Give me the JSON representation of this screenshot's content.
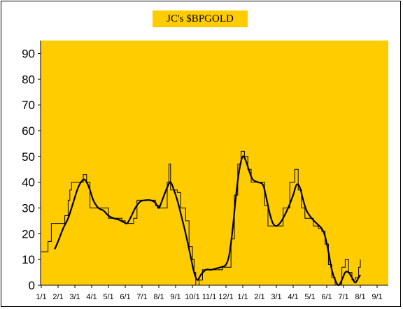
{
  "chart_data": {
    "type": "line",
    "title": "JC's $BPGOLD",
    "xlabel": "",
    "ylabel": "",
    "ylim": [
      0,
      95
    ],
    "yticks": [
      0,
      10,
      20,
      30,
      40,
      50,
      60,
      70,
      80,
      90
    ],
    "categories": [
      "1/1",
      "2/1",
      "3/1",
      "4/1",
      "5/1",
      "6/1",
      "7/1",
      "8/1",
      "9/1",
      "10/1",
      "11/1",
      "12/1",
      "1/1",
      "2/1",
      "3/1",
      "4/1",
      "5/1",
      "6/1",
      "7/1",
      "8/1",
      "9/1"
    ],
    "grid": false,
    "legend": "none",
    "colors": {
      "plot_bg": "#ffcc00",
      "title_bg": "#ffcc00",
      "line": "#000000"
    },
    "series": [
      {
        "style": "step-thin",
        "points": [
          [
            0.0,
            13
          ],
          [
            0.3,
            13
          ],
          [
            0.4,
            17
          ],
          [
            0.6,
            24
          ],
          [
            0.9,
            24
          ],
          [
            1.1,
            24
          ],
          [
            1.4,
            27
          ],
          [
            1.6,
            33
          ],
          [
            1.7,
            37
          ],
          [
            1.8,
            40
          ],
          [
            2.1,
            40
          ],
          [
            2.4,
            40
          ],
          [
            2.5,
            43
          ],
          [
            2.7,
            40
          ],
          [
            2.9,
            30
          ],
          [
            3.3,
            30
          ],
          [
            3.6,
            30
          ],
          [
            3.8,
            30
          ],
          [
            4.0,
            26
          ],
          [
            4.4,
            26
          ],
          [
            4.6,
            26
          ],
          [
            4.8,
            25
          ],
          [
            5.0,
            24
          ],
          [
            5.3,
            24
          ],
          [
            5.5,
            26
          ],
          [
            5.7,
            33
          ],
          [
            6.0,
            33
          ],
          [
            6.3,
            33
          ],
          [
            6.6,
            33
          ],
          [
            6.8,
            31
          ],
          [
            7.0,
            30
          ],
          [
            7.3,
            30
          ],
          [
            7.5,
            40
          ],
          [
            7.6,
            47
          ],
          [
            7.7,
            37
          ],
          [
            7.9,
            37
          ],
          [
            8.1,
            36
          ],
          [
            8.3,
            30
          ],
          [
            8.6,
            25
          ],
          [
            8.8,
            15
          ],
          [
            9.0,
            10
          ],
          [
            9.1,
            5
          ],
          [
            9.2,
            0
          ],
          [
            9.4,
            2
          ],
          [
            9.6,
            6
          ],
          [
            9.8,
            6
          ],
          [
            10.1,
            6
          ],
          [
            10.4,
            6
          ],
          [
            10.6,
            6
          ],
          [
            10.8,
            7
          ],
          [
            11.1,
            7
          ],
          [
            11.3,
            18
          ],
          [
            11.5,
            35
          ],
          [
            11.7,
            47
          ],
          [
            11.9,
            52
          ],
          [
            12.1,
            50
          ],
          [
            12.3,
            45
          ],
          [
            12.5,
            40
          ],
          [
            12.8,
            40
          ],
          [
            13.1,
            40
          ],
          [
            13.3,
            31
          ],
          [
            13.5,
            23
          ],
          [
            13.8,
            23
          ],
          [
            14.1,
            23
          ],
          [
            14.4,
            30
          ],
          [
            14.6,
            30
          ],
          [
            14.8,
            40
          ],
          [
            15.0,
            40
          ],
          [
            15.1,
            45
          ],
          [
            15.3,
            37
          ],
          [
            15.5,
            30
          ],
          [
            15.7,
            26
          ],
          [
            15.9,
            26
          ],
          [
            16.2,
            23
          ],
          [
            16.5,
            22
          ],
          [
            16.7,
            21
          ],
          [
            16.9,
            16
          ],
          [
            17.1,
            8
          ],
          [
            17.3,
            3
          ],
          [
            17.5,
            0
          ],
          [
            17.7,
            0
          ],
          [
            17.9,
            7
          ],
          [
            18.1,
            10
          ],
          [
            18.3,
            5
          ],
          [
            18.5,
            2
          ],
          [
            18.7,
            3
          ],
          [
            18.9,
            7
          ],
          [
            19.0,
            10
          ]
        ]
      },
      {
        "style": "smooth-bold",
        "points": [
          [
            0.8,
            14
          ],
          [
            1.0,
            17
          ],
          [
            1.3,
            22
          ],
          [
            1.6,
            26
          ],
          [
            1.9,
            32
          ],
          [
            2.2,
            38
          ],
          [
            2.5,
            41
          ],
          [
            2.7,
            40
          ],
          [
            2.9,
            37
          ],
          [
            3.1,
            33
          ],
          [
            3.4,
            30
          ],
          [
            3.7,
            29
          ],
          [
            4.0,
            27
          ],
          [
            4.3,
            26
          ],
          [
            4.6,
            25.5
          ],
          [
            4.9,
            24.5
          ],
          [
            5.1,
            24
          ],
          [
            5.3,
            26
          ],
          [
            5.6,
            30
          ],
          [
            5.9,
            32.5
          ],
          [
            6.2,
            33
          ],
          [
            6.5,
            33
          ],
          [
            6.8,
            32
          ],
          [
            7.0,
            30
          ],
          [
            7.2,
            33
          ],
          [
            7.5,
            38
          ],
          [
            7.7,
            40
          ],
          [
            7.9,
            37
          ],
          [
            8.1,
            33
          ],
          [
            8.3,
            28
          ],
          [
            8.6,
            20
          ],
          [
            8.9,
            11
          ],
          [
            9.1,
            5
          ],
          [
            9.3,
            2
          ],
          [
            9.5,
            4
          ],
          [
            9.8,
            6
          ],
          [
            10.1,
            6
          ],
          [
            10.4,
            6.5
          ],
          [
            10.7,
            7
          ],
          [
            11.0,
            8
          ],
          [
            11.2,
            12
          ],
          [
            11.4,
            22
          ],
          [
            11.6,
            35
          ],
          [
            11.8,
            45
          ],
          [
            12.0,
            50
          ],
          [
            12.2,
            48
          ],
          [
            12.4,
            44
          ],
          [
            12.6,
            41
          ],
          [
            12.9,
            40
          ],
          [
            13.2,
            39
          ],
          [
            13.4,
            34
          ],
          [
            13.6,
            28
          ],
          [
            13.8,
            24
          ],
          [
            14.0,
            23
          ],
          [
            14.2,
            24
          ],
          [
            14.4,
            26
          ],
          [
            14.7,
            30
          ],
          [
            15.0,
            35
          ],
          [
            15.2,
            39
          ],
          [
            15.4,
            38
          ],
          [
            15.6,
            33
          ],
          [
            15.8,
            29
          ],
          [
            16.1,
            26
          ],
          [
            16.4,
            24
          ],
          [
            16.7,
            22
          ],
          [
            16.9,
            19
          ],
          [
            17.1,
            13
          ],
          [
            17.3,
            6
          ],
          [
            17.5,
            2
          ],
          [
            17.7,
            0
          ],
          [
            17.9,
            2
          ],
          [
            18.1,
            5
          ],
          [
            18.3,
            5
          ],
          [
            18.5,
            3
          ],
          [
            18.7,
            1
          ],
          [
            18.9,
            3
          ],
          [
            19.0,
            4
          ]
        ]
      }
    ]
  }
}
